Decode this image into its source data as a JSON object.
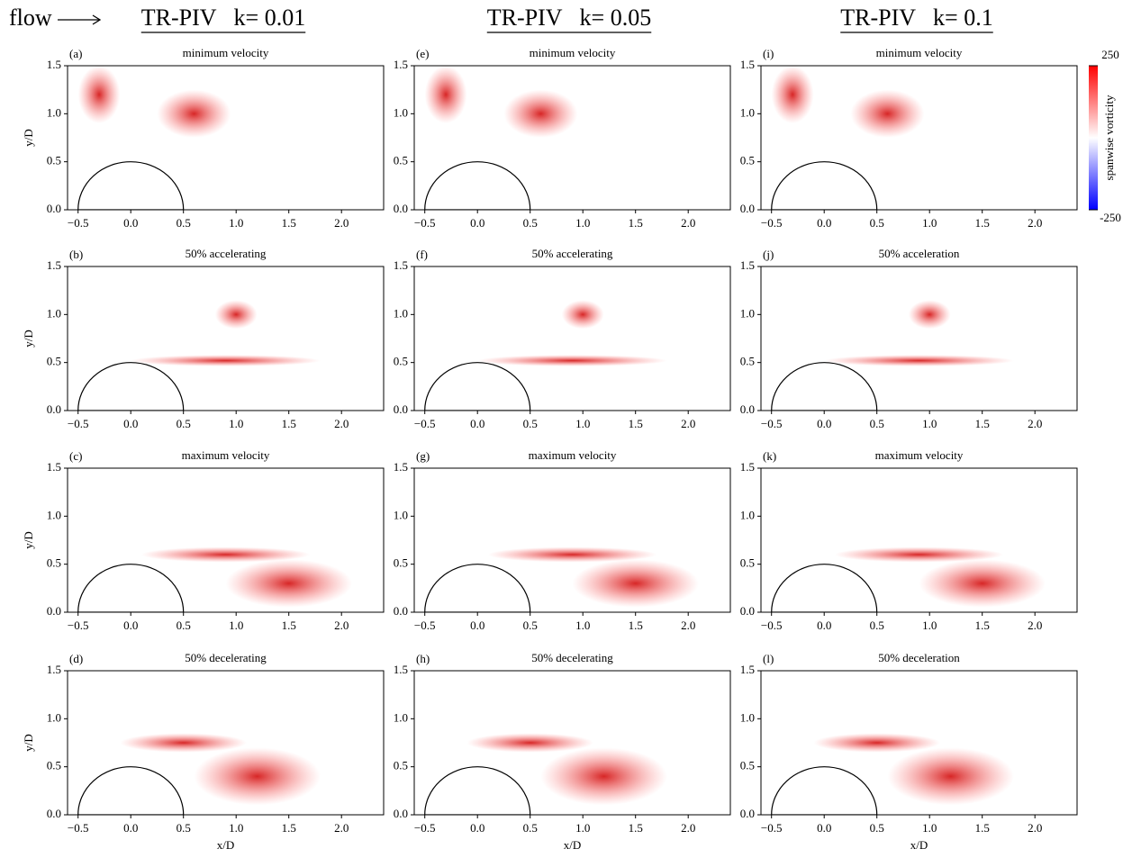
{
  "header": {
    "flow": "flow",
    "columns": [
      "TR-PIV   k= 0.01",
      "TR-PIV   k= 0.05",
      "TR-PIV   k= 0.1"
    ]
  },
  "colorbar": {
    "label": "spanwise vorticity",
    "cmap": [
      "#0000ff",
      "#ffffff",
      "#ff0000"
    ],
    "lim": [
      -250,
      250
    ],
    "ticks": [
      250,
      {
        "value": -250,
        "label": "-250"
      }
    ]
  },
  "chart_data": [
    {
      "type": "heatmap",
      "panel": "(a)",
      "title": "minimum velocity",
      "ylabel": "y/D",
      "xlim": [
        -0.6,
        2.4
      ],
      "ylim": [
        0,
        1.5
      ],
      "xticks": [
        {
          "value": -0.5,
          "label": "−0.5"
        },
        {
          "value": 0,
          "label": "0.0"
        },
        0.5,
        {
          "value": 1,
          "label": "1.0"
        },
        1.5,
        {
          "value": 2,
          "label": "2.0"
        }
      ],
      "yticks": [
        {
          "value": 0,
          "label": "0.0"
        },
        0.5,
        {
          "value": 1,
          "label": "1.0"
        },
        1.5
      ]
    },
    {
      "type": "heatmap",
      "panel": "(b)",
      "title": "50% accelerating",
      "ylabel": "y/D",
      "xlim": [
        -0.6,
        2.4
      ],
      "ylim": [
        0,
        1.5
      ],
      "xticks": [
        {
          "value": -0.5,
          "label": "−0.5"
        },
        {
          "value": 0,
          "label": "0.0"
        },
        0.5,
        {
          "value": 1,
          "label": "1.0"
        },
        1.5,
        {
          "value": 2,
          "label": "2.0"
        }
      ],
      "yticks": [
        {
          "value": 0,
          "label": "0.0"
        },
        0.5,
        {
          "value": 1,
          "label": "1.0"
        },
        1.5
      ]
    },
    {
      "type": "heatmap",
      "panel": "(c)",
      "title": "maximum velocity",
      "ylabel": "y/D",
      "xlim": [
        -0.6,
        2.4
      ],
      "ylim": [
        0,
        1.5
      ],
      "xticks": [
        {
          "value": -0.5,
          "label": "−0.5"
        },
        {
          "value": 0,
          "label": "0.0"
        },
        0.5,
        {
          "value": 1,
          "label": "1.0"
        },
        1.5,
        {
          "value": 2,
          "label": "2.0"
        }
      ],
      "yticks": [
        {
          "value": 0,
          "label": "0.0"
        },
        0.5,
        {
          "value": 1,
          "label": "1.0"
        },
        1.5
      ]
    },
    {
      "type": "heatmap",
      "panel": "(d)",
      "title": "50% decelerating",
      "ylabel": "y/D",
      "xlabel": "x/D",
      "xlim": [
        -0.6,
        2.4
      ],
      "ylim": [
        0,
        1.5
      ],
      "xticks": [
        {
          "value": -0.5,
          "label": "−0.5"
        },
        {
          "value": 0,
          "label": "0.0"
        },
        0.5,
        {
          "value": 1,
          "label": "1.0"
        },
        1.5,
        {
          "value": 2,
          "label": "2.0"
        }
      ],
      "yticks": [
        {
          "value": 0,
          "label": "0.0"
        },
        0.5,
        {
          "value": 1,
          "label": "1.0"
        },
        1.5
      ]
    },
    {
      "type": "heatmap",
      "panel": "(e)",
      "title": "minimum velocity",
      "xlim": [
        -0.6,
        2.4
      ],
      "ylim": [
        0,
        1.5
      ],
      "xticks": [
        {
          "value": -0.5,
          "label": "−0.5"
        },
        {
          "value": 0,
          "label": "0.0"
        },
        0.5,
        {
          "value": 1,
          "label": "1.0"
        },
        1.5,
        {
          "value": 2,
          "label": "2.0"
        }
      ],
      "yticks": [
        {
          "value": 0,
          "label": "0.0"
        },
        0.5,
        {
          "value": 1,
          "label": "1.0"
        },
        1.5
      ]
    },
    {
      "type": "heatmap",
      "panel": "(f)",
      "title": "50% accelerating",
      "xlim": [
        -0.6,
        2.4
      ],
      "ylim": [
        0,
        1.5
      ],
      "xticks": [
        {
          "value": -0.5,
          "label": "−0.5"
        },
        {
          "value": 0,
          "label": "0.0"
        },
        0.5,
        {
          "value": 1,
          "label": "1.0"
        },
        1.5,
        {
          "value": 2,
          "label": "2.0"
        }
      ],
      "yticks": [
        {
          "value": 0,
          "label": "0.0"
        },
        0.5,
        {
          "value": 1,
          "label": "1.0"
        },
        1.5
      ]
    },
    {
      "type": "heatmap",
      "panel": "(g)",
      "title": "maximum velocity",
      "xlim": [
        -0.6,
        2.4
      ],
      "ylim": [
        0,
        1.5
      ],
      "xticks": [
        {
          "value": -0.5,
          "label": "−0.5"
        },
        {
          "value": 0,
          "label": "0.0"
        },
        0.5,
        {
          "value": 1,
          "label": "1.0"
        },
        1.5,
        {
          "value": 2,
          "label": "2.0"
        }
      ],
      "yticks": [
        {
          "value": 0,
          "label": "0.0"
        },
        0.5,
        {
          "value": 1,
          "label": "1.0"
        },
        1.5
      ]
    },
    {
      "type": "heatmap",
      "panel": "(h)",
      "title": "50% decelerating",
      "xlabel": "x/D",
      "xlim": [
        -0.6,
        2.4
      ],
      "ylim": [
        0,
        1.5
      ],
      "xticks": [
        {
          "value": -0.5,
          "label": "−0.5"
        },
        {
          "value": 0,
          "label": "0.0"
        },
        0.5,
        {
          "value": 1,
          "label": "1.0"
        },
        1.5,
        {
          "value": 2,
          "label": "2.0"
        }
      ],
      "yticks": [
        {
          "value": 0,
          "label": "0.0"
        },
        0.5,
        {
          "value": 1,
          "label": "1.0"
        },
        1.5
      ]
    },
    {
      "type": "heatmap",
      "panel": "(i)",
      "title": "minimum velocity",
      "xlim": [
        -0.6,
        2.4
      ],
      "ylim": [
        0,
        1.5
      ],
      "xticks": [
        {
          "value": -0.5,
          "label": "−0.5"
        },
        {
          "value": 0,
          "label": "0.0"
        },
        0.5,
        {
          "value": 1,
          "label": "1.0"
        },
        1.5,
        {
          "value": 2,
          "label": "2.0"
        }
      ],
      "yticks": [
        {
          "value": 0,
          "label": "0.0"
        },
        0.5,
        {
          "value": 1,
          "label": "1.0"
        },
        1.5
      ]
    },
    {
      "type": "heatmap",
      "panel": "(j)",
      "title": "50% acceleration",
      "xlim": [
        -0.6,
        2.4
      ],
      "ylim": [
        0,
        1.5
      ],
      "xticks": [
        {
          "value": -0.5,
          "label": "−0.5"
        },
        {
          "value": 0,
          "label": "0.0"
        },
        0.5,
        {
          "value": 1,
          "label": "1.0"
        },
        1.5,
        {
          "value": 2,
          "label": "2.0"
        }
      ],
      "yticks": [
        {
          "value": 0,
          "label": "0.0"
        },
        0.5,
        {
          "value": 1,
          "label": "1.0"
        },
        1.5
      ]
    },
    {
      "type": "heatmap",
      "panel": "(k)",
      "title": "maximum velocity",
      "xlim": [
        -0.6,
        2.4
      ],
      "ylim": [
        0,
        1.5
      ],
      "xticks": [
        {
          "value": -0.5,
          "label": "−0.5"
        },
        {
          "value": 0,
          "label": "0.0"
        },
        0.5,
        {
          "value": 1,
          "label": "1.0"
        },
        1.5,
        {
          "value": 2,
          "label": "2.0"
        }
      ],
      "yticks": [
        {
          "value": 0,
          "label": "0.0"
        },
        0.5,
        {
          "value": 1,
          "label": "1.0"
        },
        1.5
      ]
    },
    {
      "type": "heatmap",
      "panel": "(l)",
      "title": "50% deceleration",
      "xlabel": "x/D",
      "xlim": [
        -0.6,
        2.4
      ],
      "ylim": [
        0,
        1.5
      ],
      "xticks": [
        {
          "value": -0.5,
          "label": "−0.5"
        },
        {
          "value": 0,
          "label": "0.0"
        },
        0.5,
        {
          "value": 1,
          "label": "1.0"
        },
        1.5,
        {
          "value": 2,
          "label": "2.0"
        }
      ],
      "yticks": [
        {
          "value": 0,
          "label": "0.0"
        },
        0.5,
        {
          "value": 1,
          "label": "1.0"
        },
        1.5
      ]
    }
  ]
}
